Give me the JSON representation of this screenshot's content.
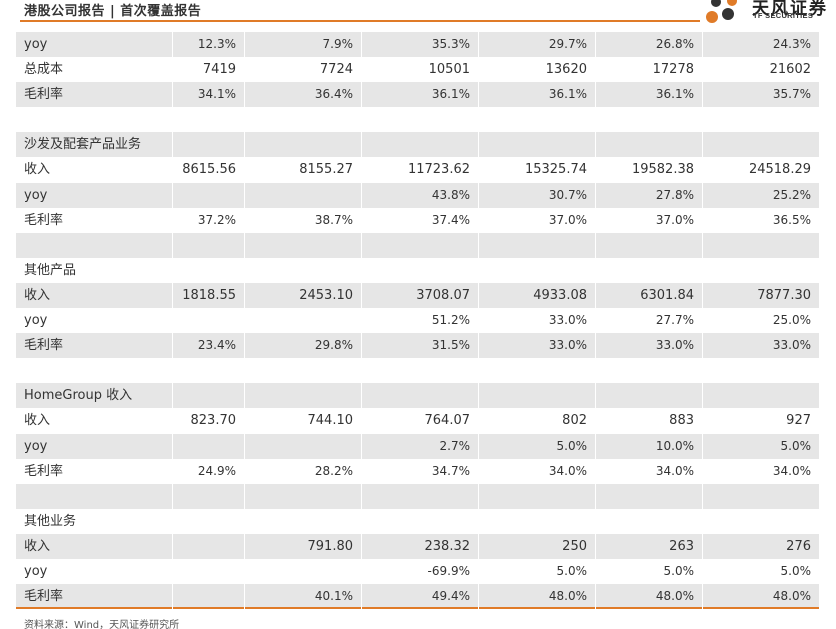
{
  "header": {
    "title": "港股公司报告 | 首次覆盖报告",
    "logo_name": "天风证券",
    "logo_sub": "TF SECURITIES",
    "accent_color": "#e07b28"
  },
  "rows": [
    {
      "label": "yoy",
      "shaded": true,
      "values": [
        "12.3%",
        "7.9%",
        "35.3%",
        "29.7%",
        "26.8%",
        "24.3%"
      ]
    },
    {
      "label": "总成本",
      "shaded": false,
      "values": [
        "7419",
        "7724",
        "10501",
        "13620",
        "17278",
        "21602"
      ]
    },
    {
      "label": "毛利率",
      "shaded": true,
      "values": [
        "34.1%",
        "36.4%",
        "36.1%",
        "36.1%",
        "36.1%",
        "35.7%"
      ]
    },
    {
      "label": "",
      "shaded": false,
      "values": [
        "",
        "",
        "",
        "",
        "",
        ""
      ]
    },
    {
      "label": "沙发及配套产品业务",
      "shaded": true,
      "values": [
        "",
        "",
        "",
        "",
        "",
        ""
      ]
    },
    {
      "label": "收入",
      "shaded": false,
      "values": [
        "8615.56",
        "8155.27",
        "11723.62",
        "15325.74",
        "19582.38",
        "24518.29"
      ]
    },
    {
      "label": "yoy",
      "shaded": true,
      "values": [
        "",
        "",
        "43.8%",
        "30.7%",
        "27.8%",
        "25.2%"
      ]
    },
    {
      "label": "毛利率",
      "shaded": false,
      "values": [
        "37.2%",
        "38.7%",
        "37.4%",
        "37.0%",
        "37.0%",
        "36.5%"
      ]
    },
    {
      "label": "",
      "shaded": true,
      "values": [
        "",
        "",
        "",
        "",
        "",
        ""
      ]
    },
    {
      "label": "其他产品",
      "shaded": false,
      "values": [
        "",
        "",
        "",
        "",
        "",
        ""
      ]
    },
    {
      "label": "收入",
      "shaded": true,
      "values": [
        "1818.55",
        "2453.10",
        "3708.07",
        "4933.08",
        "6301.84",
        "7877.30"
      ]
    },
    {
      "label": "yoy",
      "shaded": false,
      "values": [
        "",
        "",
        "51.2%",
        "33.0%",
        "27.7%",
        "25.0%"
      ]
    },
    {
      "label": "毛利率",
      "shaded": true,
      "values": [
        "23.4%",
        "29.8%",
        "31.5%",
        "33.0%",
        "33.0%",
        "33.0%"
      ]
    },
    {
      "label": "",
      "shaded": false,
      "values": [
        "",
        "",
        "",
        "",
        "",
        ""
      ]
    },
    {
      "label": "HomeGroup 收入",
      "shaded": true,
      "values": [
        "",
        "",
        "",
        "",
        "",
        ""
      ]
    },
    {
      "label": "收入",
      "shaded": false,
      "values": [
        "823.70",
        "744.10",
        "764.07",
        "802",
        "883",
        "927"
      ]
    },
    {
      "label": "yoy",
      "shaded": true,
      "values": [
        "",
        "",
        "2.7%",
        "5.0%",
        "10.0%",
        "5.0%"
      ]
    },
    {
      "label": "毛利率",
      "shaded": false,
      "values": [
        "24.9%",
        "28.2%",
        "34.7%",
        "34.0%",
        "34.0%",
        "34.0%"
      ]
    },
    {
      "label": "",
      "shaded": true,
      "values": [
        "",
        "",
        "",
        "",
        "",
        ""
      ]
    },
    {
      "label": "其他业务",
      "shaded": false,
      "values": [
        "",
        "",
        "",
        "",
        "",
        ""
      ]
    },
    {
      "label": "收入",
      "shaded": true,
      "values": [
        "",
        "791.80",
        "238.32",
        "250",
        "263",
        "276"
      ]
    },
    {
      "label": "yoy",
      "shaded": false,
      "values": [
        "",
        "",
        "-69.9%",
        "5.0%",
        "5.0%",
        "5.0%"
      ]
    },
    {
      "label": "毛利率",
      "shaded": true,
      "values": [
        "",
        "40.1%",
        "49.4%",
        "48.0%",
        "48.0%",
        "48.0%"
      ]
    }
  ],
  "footer": {
    "source": "资料来源：Wind，天风证券研究所"
  }
}
